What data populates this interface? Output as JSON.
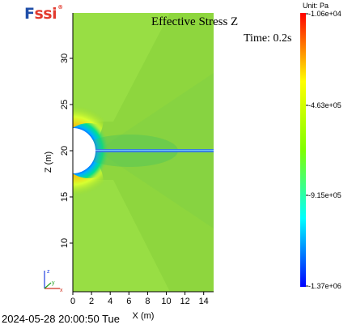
{
  "logo": {
    "f": "F",
    "ssi": "ssi",
    "mark": "®"
  },
  "plot": {
    "title": "Effective Stress Z",
    "time": "Time: 0.2s",
    "y_axis_label": "Z (m)",
    "x_axis_label": "X (m)",
    "y_ticks": [
      "10",
      "15",
      "20",
      "25",
      "30"
    ],
    "x_ticks": [
      "0",
      "2",
      "4",
      "6",
      "8",
      "10",
      "12",
      "14"
    ],
    "axes_triad": {
      "z": "z",
      "y": "y",
      "x": "x"
    }
  },
  "colorbar": {
    "unit": "Unit:  Pa",
    "max": "-1.06e+04",
    "mid_high": "-4.63e+05",
    "mid_low": "-9.15e+05",
    "min": "-1.37e+06",
    "colors": {
      "top": "#ff0000",
      "yellow": "#ffff00",
      "green": "#00ff00",
      "cyan": "#00ffff",
      "blue": "#0000ff"
    }
  },
  "footer": {
    "timestamp": "2024-05-28 20:00:50 Tue"
  }
}
